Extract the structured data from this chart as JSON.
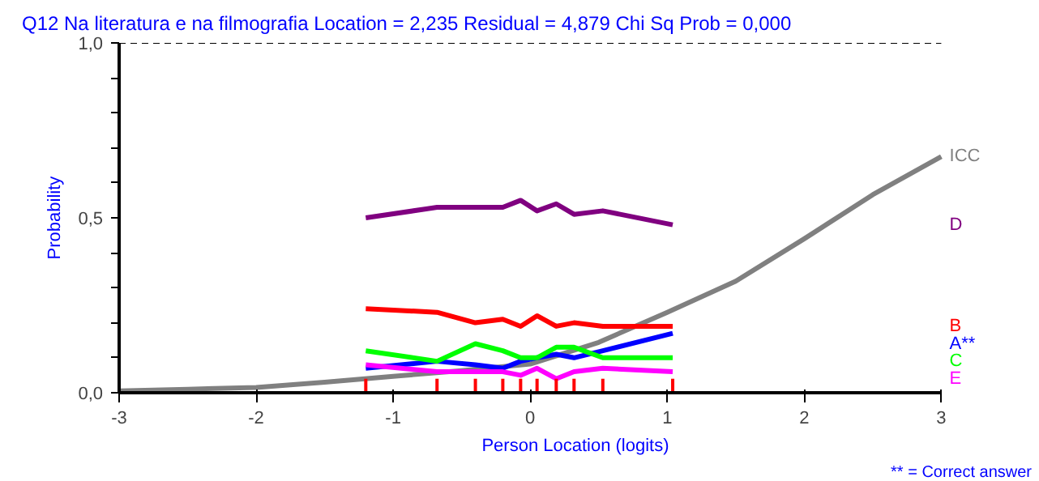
{
  "chart_data": {
    "type": "line",
    "title": "Q12    Na literatura e na filmografia      Location = 2,235      Residual = 4,879      Chi Sq Prob = 0,000",
    "xlabel": "Person Location (logits)",
    "ylabel": "Probability",
    "annotations": [
      "** = Correct answer"
    ],
    "xlim": [
      -3,
      3
    ],
    "ylim": [
      0,
      1
    ],
    "xticks": [
      -3,
      -2,
      -1,
      0,
      1,
      2,
      3
    ],
    "yticks": [
      {
        "value": 0,
        "label": "0,0"
      },
      {
        "value": 0.1,
        "label": null
      },
      {
        "value": 0.2,
        "label": null
      },
      {
        "value": 0.3,
        "label": null
      },
      {
        "value": 0.4,
        "label": null
      },
      {
        "value": 0.5,
        "label": "0,5"
      },
      {
        "value": 0.6,
        "label": null
      },
      {
        "value": 0.7,
        "label": null
      },
      {
        "value": 0.8,
        "label": null
      },
      {
        "value": 0.9,
        "label": null
      },
      {
        "value": 1,
        "label": "1,0"
      }
    ],
    "x": [
      -1.2,
      -0.68,
      -0.4,
      -0.2,
      -0.07,
      0.05,
      0.19,
      0.32,
      0.53,
      1.04
    ],
    "series": [
      {
        "name": "ICC",
        "color": "#808080",
        "x": [
          -3,
          -2.5,
          -2,
          -1.5,
          -1,
          -0.5,
          0,
          0.5,
          1,
          1.5,
          2,
          2.5,
          3
        ],
        "values": [
          0.005,
          0.01,
          0.015,
          0.03,
          0.047,
          0.063,
          0.082,
          0.144,
          0.23,
          0.319,
          0.44,
          0.566,
          0.675
        ]
      },
      {
        "name": "D",
        "color": "#800080",
        "values": [
          0.5,
          0.53,
          0.53,
          0.53,
          0.55,
          0.52,
          0.54,
          0.51,
          0.52,
          0.48
        ]
      },
      {
        "name": "A**",
        "color": "#0000ff",
        "values": [
          0.07,
          0.09,
          0.08,
          0.07,
          0.09,
          0.1,
          0.11,
          0.1,
          0.12,
          0.17
        ]
      },
      {
        "name": "B",
        "color": "#ff0000",
        "values": [
          0.24,
          0.23,
          0.2,
          0.21,
          0.19,
          0.22,
          0.19,
          0.2,
          0.19,
          0.19
        ]
      },
      {
        "name": "C",
        "color": "#00ff00",
        "values": [
          0.12,
          0.09,
          0.14,
          0.12,
          0.1,
          0.1,
          0.13,
          0.13,
          0.1,
          0.1
        ]
      },
      {
        "name": "E",
        "color": "#ff00ff",
        "values": [
          0.08,
          0.06,
          0.06,
          0.06,
          0.05,
          0.07,
          0.04,
          0.06,
          0.07,
          0.06
        ]
      }
    ],
    "ref_lines": [
      {
        "axis": "y",
        "value": 1,
        "line_style": "dashed"
      }
    ],
    "grid": false,
    "marker": "none",
    "line_style": "solid"
  }
}
